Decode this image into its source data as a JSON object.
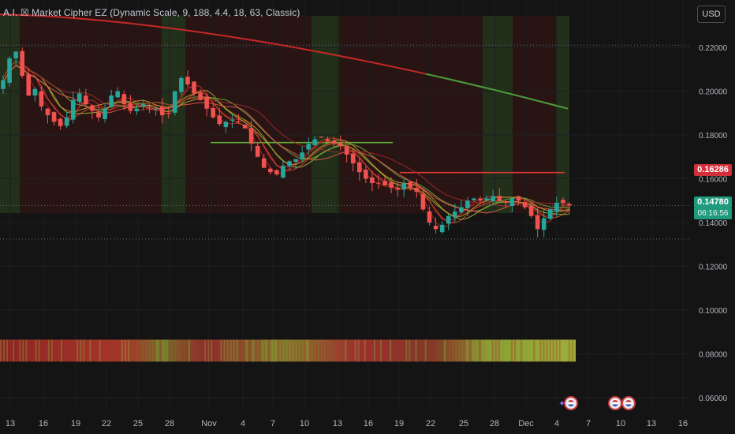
{
  "indicator": {
    "title": "A.I. ☒ Market Cipher EZ (Dynamic Scale, 9, 188, 4.4, 18, 63, Classic)"
  },
  "toolbar": {
    "currency": "USD"
  },
  "price_tags": {
    "red": "0.16286",
    "green": "0.14780",
    "countdown": "06:16:56"
  },
  "colors": {
    "up": "#26a69a",
    "down": "#ef5350",
    "background": "#141414",
    "ribbon_red": "#c62828",
    "ribbon_green": "#43a047"
  },
  "events": [
    {
      "label": "US event",
      "date": "Dec 4"
    },
    {
      "label": "US event",
      "date": "Dec 9"
    },
    {
      "label": "US event",
      "date": "Dec 10"
    }
  ],
  "chart_data": {
    "type": "candlestick",
    "title": "",
    "yaxis": {
      "min": 0.055,
      "max": 0.235,
      "ticks": [
        "0.22000",
        "0.20000",
        "0.18000",
        "0.16000",
        "0.14000",
        "0.12000",
        "0.10000",
        "0.08000",
        "0.06000"
      ]
    },
    "xaxis": {
      "ticks": [
        "13",
        "16",
        "19",
        "22",
        "25",
        "28",
        "Nov",
        "4",
        "7",
        "10",
        "13",
        "16",
        "19",
        "22",
        "25",
        "28",
        "Dec",
        "4",
        "7",
        "10",
        "13",
        "16"
      ]
    },
    "last_price": 0.1478,
    "reference_price": 0.16286,
    "horizontal_levels": [
      0.221,
      0.1478,
      0.1325
    ],
    "green_segment": {
      "from": "Nov 1",
      "to": "Nov 19",
      "price": 0.1765
    },
    "red_segment": {
      "from": "Nov 19",
      "to": "Dec 6",
      "price": 0.1628
    },
    "long_ma": {
      "start": 0.235,
      "end": 0.192
    },
    "closes": [
      0.205,
      0.215,
      0.218,
      0.207,
      0.198,
      0.201,
      0.193,
      0.189,
      0.186,
      0.184,
      0.188,
      0.196,
      0.199,
      0.194,
      0.191,
      0.188,
      0.192,
      0.198,
      0.2,
      0.194,
      0.191,
      0.192,
      0.194,
      0.193,
      0.192,
      0.189,
      0.19,
      0.2,
      0.206,
      0.203,
      0.199,
      0.196,
      0.192,
      0.188,
      0.185,
      0.186,
      0.187,
      0.186,
      0.183,
      0.176,
      0.17,
      0.165,
      0.163,
      0.162,
      0.166,
      0.168,
      0.169,
      0.172,
      0.176,
      0.178,
      0.179,
      0.177,
      0.176,
      0.175,
      0.171,
      0.167,
      0.163,
      0.16,
      0.158,
      0.158,
      0.157,
      0.156,
      0.155,
      0.158,
      0.156,
      0.154,
      0.146,
      0.14,
      0.137,
      0.139,
      0.143,
      0.145,
      0.147,
      0.15,
      0.151,
      0.15,
      0.151,
      0.152,
      0.15,
      0.149,
      0.151,
      0.15,
      0.147,
      0.143,
      0.137,
      0.142,
      0.146,
      0.149,
      0.149,
      0.1478
    ],
    "heat_strip": {
      "price_top": 0.0865,
      "price_bottom": 0.0765,
      "label": ""
    }
  }
}
